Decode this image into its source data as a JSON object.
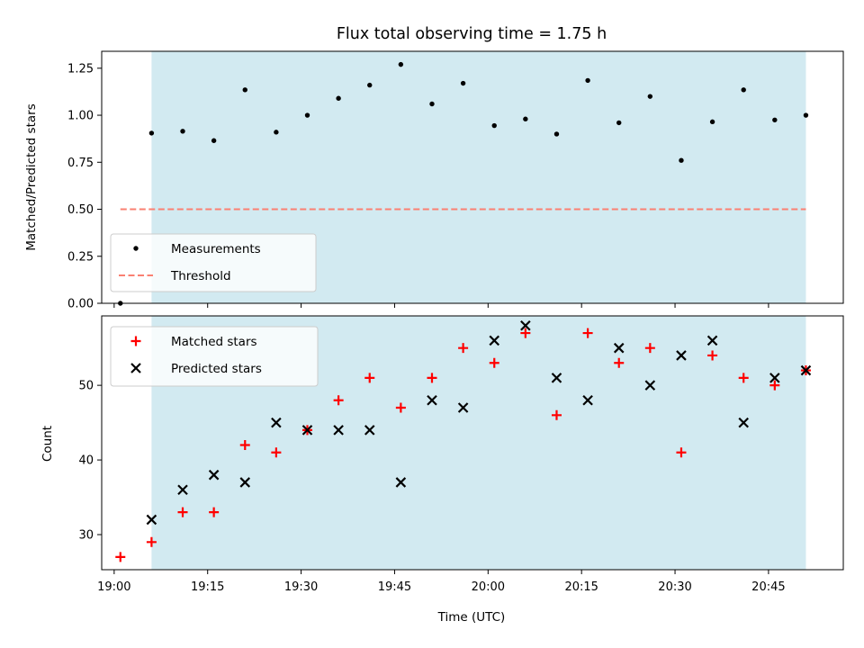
{
  "chart_data": [
    {
      "type": "scatter",
      "title": "Flux total observing time = 1.75 h",
      "xlabel": "",
      "ylabel": "Matched/Predicted stars",
      "xlim": [
        "18:58",
        "20:57"
      ],
      "ylim": [
        0,
        1.34
      ],
      "yticks": [
        "0.00",
        "0.25",
        "0.50",
        "0.75",
        "1.00",
        "1.25"
      ],
      "grid": false,
      "legend": "lower-left",
      "shaded_region": {
        "x": [
          "19:06",
          "20:51"
        ],
        "color": "#add8e6"
      },
      "threshold": {
        "name": "Threshold",
        "y": 0.5,
        "x": [
          "19:01",
          "20:51"
        ],
        "color": "#fa8072",
        "style": "dashed"
      },
      "series": [
        {
          "name": "Measurements",
          "marker": "dot",
          "color": "#000000",
          "x": [
            "19:01",
            "19:06",
            "19:11",
            "19:16",
            "19:21",
            "19:26",
            "19:31",
            "19:36",
            "19:41",
            "19:46",
            "19:51",
            "19:56",
            "20:01",
            "20:06",
            "20:11",
            "20:16",
            "20:21",
            "20:26",
            "20:31",
            "20:36",
            "20:41",
            "20:46",
            "20:51"
          ],
          "y": [
            0.0,
            0.905,
            0.915,
            0.865,
            1.135,
            0.91,
            1.0,
            1.09,
            1.16,
            1.27,
            1.06,
            1.17,
            0.945,
            0.98,
            0.9,
            1.185,
            0.96,
            1.1,
            0.76,
            0.965,
            1.135,
            0.975,
            1.0
          ]
        }
      ]
    },
    {
      "type": "scatter",
      "title": "",
      "xlabel": "Time (UTC)",
      "ylabel": "Count",
      "xlim": [
        "18:58",
        "20:57"
      ],
      "ylim": [
        25.3,
        59.3
      ],
      "yticks": [
        "30",
        "40",
        "50"
      ],
      "xticks": [
        "19:00",
        "19:15",
        "19:30",
        "19:45",
        "20:00",
        "20:15",
        "20:30",
        "20:45"
      ],
      "grid": false,
      "legend": "top-left",
      "shaded_region": {
        "x": [
          "19:06",
          "20:51"
        ],
        "color": "#add8e6"
      },
      "series": [
        {
          "name": "Matched stars",
          "marker": "plus",
          "color": "#ff0000",
          "x": [
            "19:01",
            "19:06",
            "19:11",
            "19:16",
            "19:21",
            "19:26",
            "19:31",
            "19:36",
            "19:41",
            "19:46",
            "19:51",
            "19:56",
            "20:01",
            "20:06",
            "20:11",
            "20:16",
            "20:21",
            "20:26",
            "20:31",
            "20:36",
            "20:41",
            "20:46",
            "20:51"
          ],
          "y": [
            27,
            29,
            33,
            33,
            42,
            41,
            44,
            48,
            51,
            47,
            51,
            55,
            53,
            57,
            46,
            57,
            53,
            55,
            41,
            54,
            51,
            50,
            52
          ]
        },
        {
          "name": "Predicted stars",
          "marker": "x",
          "color": "#000000",
          "x": [
            "19:06",
            "19:11",
            "19:16",
            "19:21",
            "19:26",
            "19:31",
            "19:36",
            "19:41",
            "19:46",
            "19:51",
            "19:56",
            "20:01",
            "20:06",
            "20:11",
            "20:16",
            "20:21",
            "20:26",
            "20:31",
            "20:36",
            "20:41",
            "20:46",
            "20:51"
          ],
          "y": [
            32,
            36,
            38,
            37,
            45,
            44,
            44,
            44,
            37,
            48,
            47,
            56,
            58,
            51,
            48,
            55,
            50,
            54,
            56,
            45,
            51,
            52
          ]
        }
      ]
    }
  ]
}
